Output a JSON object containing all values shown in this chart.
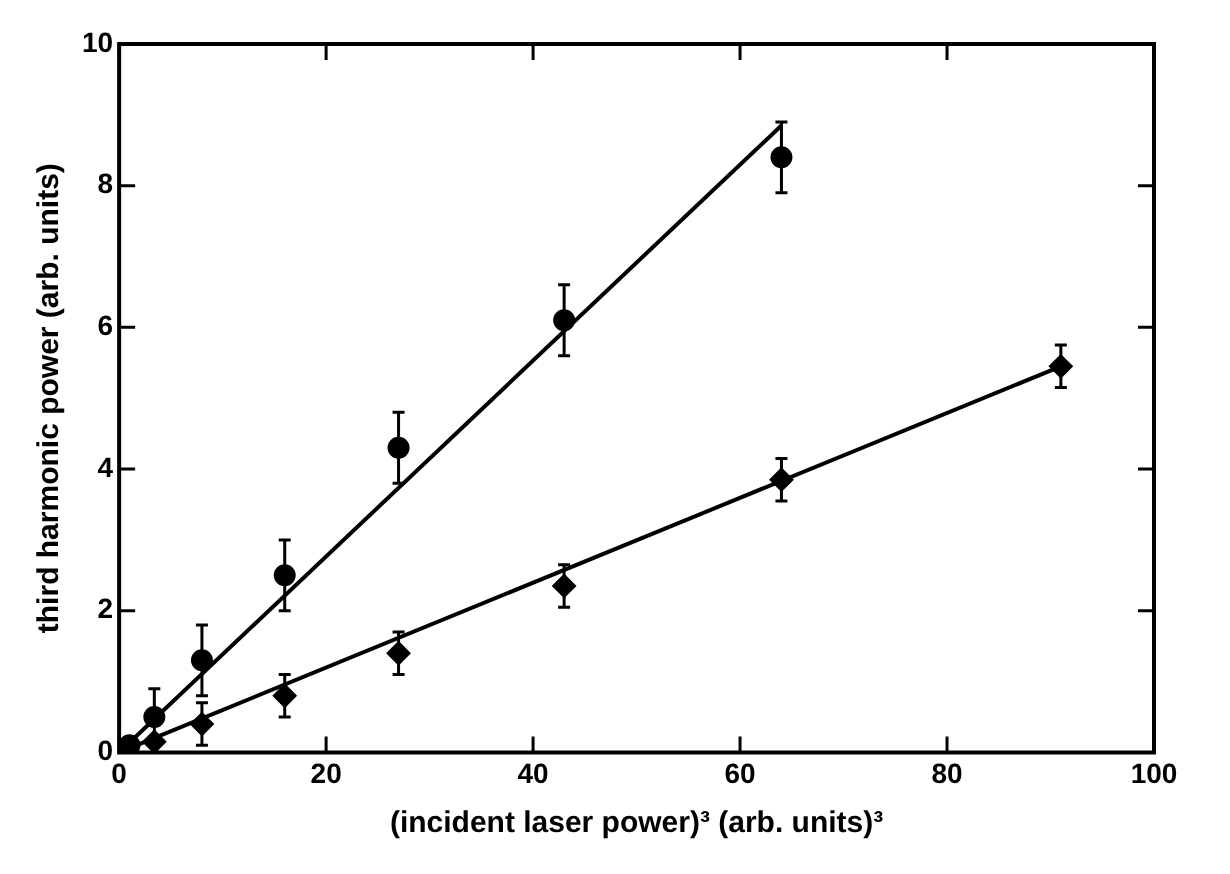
{
  "chart_data": {
    "type": "scatter",
    "xlabel": "(incident laser power)³ (arb. units)³",
    "ylabel": "third harmonic power (arb. units)",
    "xlim": [
      0,
      100
    ],
    "xticks": [
      0,
      20,
      40,
      60,
      80,
      100
    ],
    "ylim": [
      0,
      10
    ],
    "yticks": [
      0,
      2,
      4,
      6,
      8,
      10
    ],
    "series": [
      {
        "type": "scatter",
        "marker": "circle",
        "color": "#000000",
        "x": [
          1,
          3.4,
          8,
          16,
          27,
          43,
          64
        ],
        "values": [
          0.1,
          0.5,
          1.3,
          2.5,
          4.3,
          6.1,
          8.4
        ],
        "errors": [
          null,
          0.4,
          0.5,
          0.5,
          0.5,
          0.5,
          0.5
        ]
      },
      {
        "type": "scatter",
        "marker": "diamond",
        "color": "#000000",
        "x": [
          3.4,
          8,
          16,
          27,
          43,
          64,
          91
        ],
        "values": [
          0.15,
          0.4,
          0.8,
          1.4,
          2.35,
          3.85,
          5.45
        ],
        "errors": [
          null,
          0.3,
          0.3,
          0.3,
          0.3,
          0.3,
          0.3
        ]
      },
      {
        "type": "line",
        "marker": "none",
        "line_style": "solid",
        "color": "#000000",
        "x": [
          0,
          64
        ],
        "values": [
          0,
          8.85
        ]
      },
      {
        "type": "line",
        "marker": "none",
        "line_style": "solid",
        "color": "#000000",
        "x": [
          0,
          91
        ],
        "values": [
          0,
          5.45
        ]
      }
    ]
  }
}
